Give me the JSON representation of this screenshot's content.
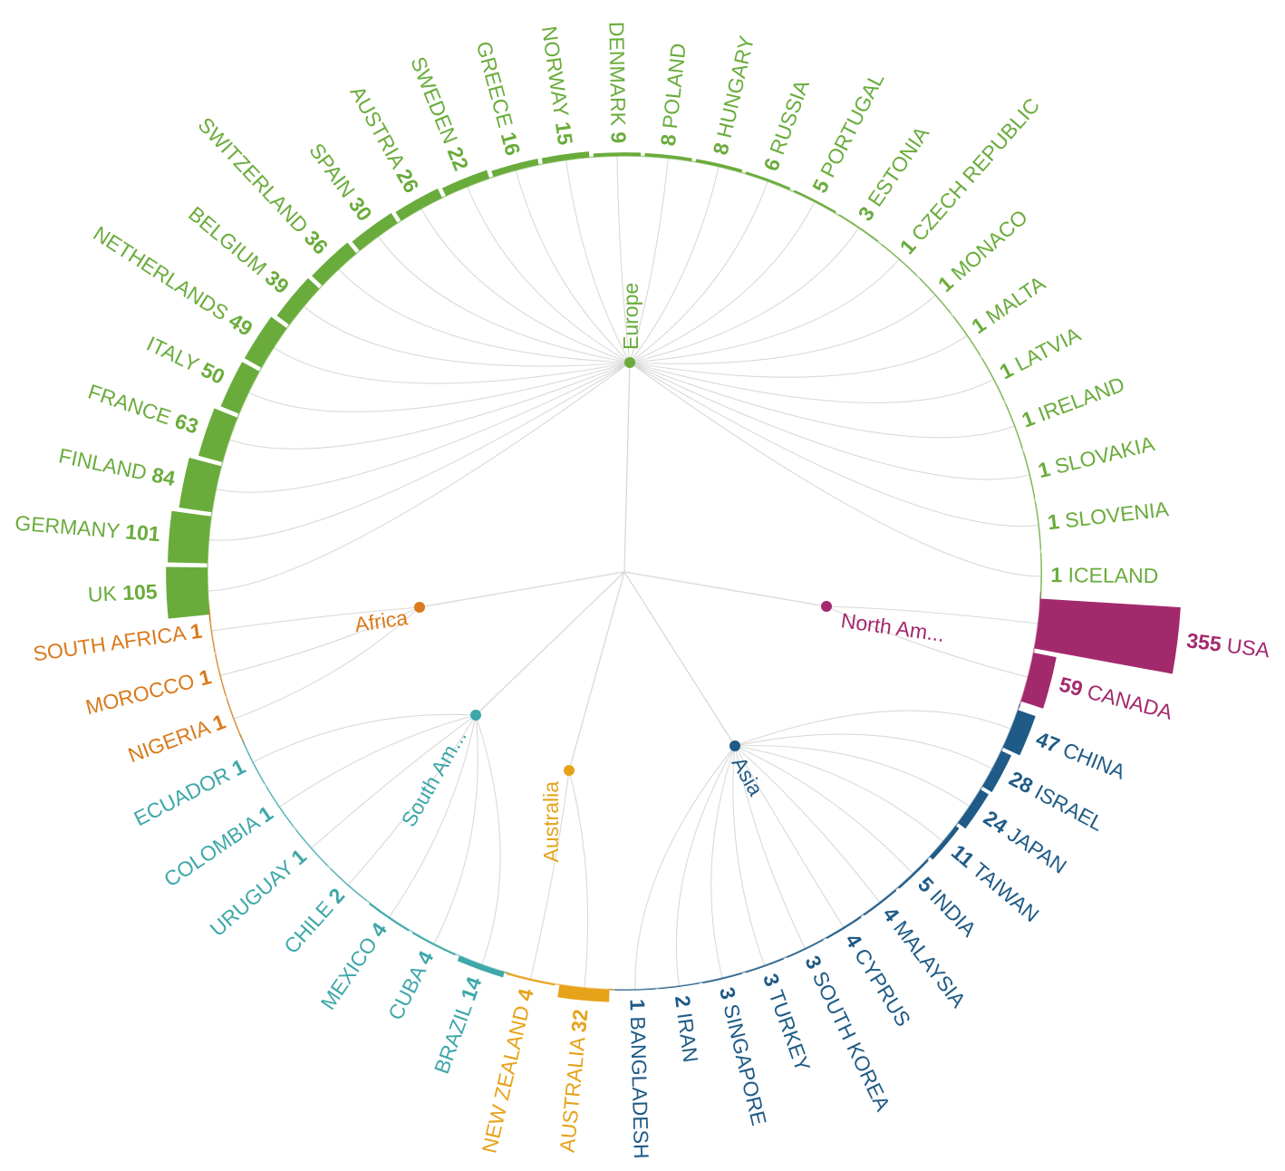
{
  "chart_data": {
    "type": "radial-dendrogram-bar",
    "title": "",
    "colors": {
      "Europe": "#6aac3c",
      "North Am...": "#a3296d",
      "Asia": "#1f5b86",
      "Australia": "#e6a31a",
      "South Am...": "#3ea7a9",
      "Africa": "#d97a1c"
    },
    "regions": [
      {
        "name": "Europe",
        "label": "Europe",
        "countries": [
          {
            "name": "UK",
            "value": 105
          },
          {
            "name": "GERMANY",
            "value": 101
          },
          {
            "name": "FINLAND",
            "value": 84
          },
          {
            "name": "FRANCE",
            "value": 63
          },
          {
            "name": "ITALY",
            "value": 50
          },
          {
            "name": "NETHERLANDS",
            "value": 49
          },
          {
            "name": "BELGIUM",
            "value": 39
          },
          {
            "name": "SWITZERLAND",
            "value": 36
          },
          {
            "name": "SPAIN",
            "value": 30
          },
          {
            "name": "AUSTRIA",
            "value": 26
          },
          {
            "name": "SWEDEN",
            "value": 22
          },
          {
            "name": "GREECE",
            "value": 16
          },
          {
            "name": "NORWAY",
            "value": 15
          },
          {
            "name": "DENMARK",
            "value": 9
          },
          {
            "name": "POLAND",
            "value": 8
          },
          {
            "name": "HUNGARY",
            "value": 8
          },
          {
            "name": "RUSSIA",
            "value": 6
          },
          {
            "name": "PORTUGAL",
            "value": 5
          },
          {
            "name": "ESTONIA",
            "value": 3
          },
          {
            "name": "CZECH REPUBLIC",
            "value": 1
          },
          {
            "name": "MONACO",
            "value": 1
          },
          {
            "name": "MALTA",
            "value": 1
          },
          {
            "name": "LATVIA",
            "value": 1
          },
          {
            "name": "IRELAND",
            "value": 1
          },
          {
            "name": "SLOVAKIA",
            "value": 1
          },
          {
            "name": "SLOVENIA",
            "value": 1
          },
          {
            "name": "ICELAND",
            "value": 1
          }
        ]
      },
      {
        "name": "North Am...",
        "label": "North Am...",
        "countries": [
          {
            "name": "USA",
            "value": 355
          },
          {
            "name": "CANADA",
            "value": 59
          }
        ]
      },
      {
        "name": "Asia",
        "label": "Asia",
        "countries": [
          {
            "name": "CHINA",
            "value": 47
          },
          {
            "name": "ISRAEL",
            "value": 28
          },
          {
            "name": "JAPAN",
            "value": 24
          },
          {
            "name": "TAIWAN",
            "value": 11
          },
          {
            "name": "INDIA",
            "value": 5
          },
          {
            "name": "MALAYSIA",
            "value": 4
          },
          {
            "name": "CYPRUS",
            "value": 4
          },
          {
            "name": "SOUTH KOREA",
            "value": 3
          },
          {
            "name": "TURKEY",
            "value": 3
          },
          {
            "name": "SINGAPORE",
            "value": 3
          },
          {
            "name": "IRAN",
            "value": 2
          },
          {
            "name": "BANGLADESH",
            "value": 1
          }
        ]
      },
      {
        "name": "Australia",
        "label": "Australia",
        "countries": [
          {
            "name": "AUSTRALIA",
            "value": 32
          },
          {
            "name": "NEW ZEALAND",
            "value": 4
          }
        ]
      },
      {
        "name": "South Am...",
        "label": "South Am...",
        "countries": [
          {
            "name": "BRAZIL",
            "value": 14
          },
          {
            "name": "CUBA",
            "value": 4
          },
          {
            "name": "MEXICO",
            "value": 4
          },
          {
            "name": "CHILE",
            "value": 2
          },
          {
            "name": "URUGUAY",
            "value": 1
          },
          {
            "name": "COLOMBIA",
            "value": 1
          },
          {
            "name": "ECUADOR",
            "value": 1
          }
        ]
      },
      {
        "name": "Africa",
        "label": "Africa",
        "countries": [
          {
            "name": "NIGERIA",
            "value": 1
          },
          {
            "name": "MOROCCO",
            "value": 1
          },
          {
            "name": "SOUTH AFRICA",
            "value": 1
          }
        ]
      }
    ]
  }
}
